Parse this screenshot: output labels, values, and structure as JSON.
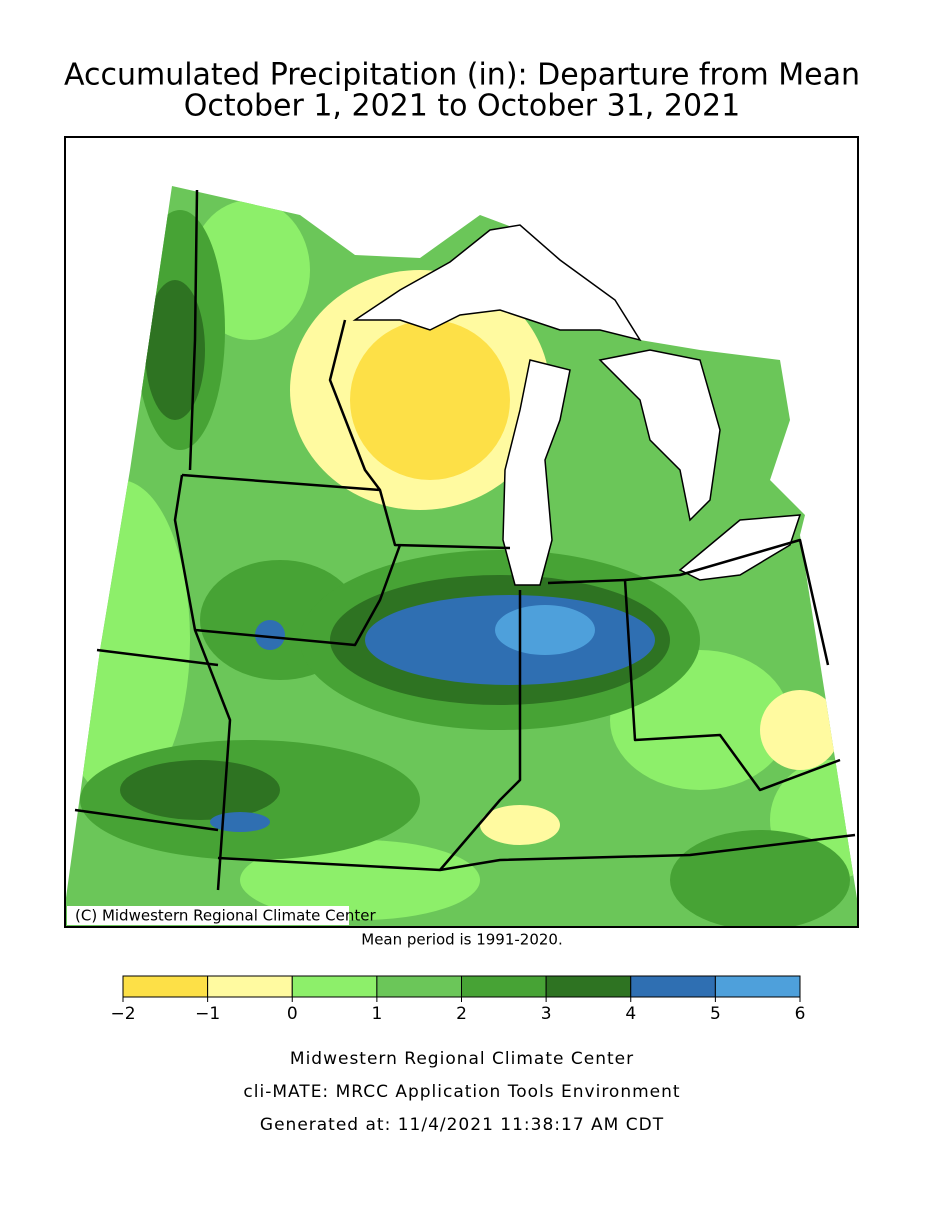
{
  "header": {
    "title": "Accumulated Precipitation (in): Departure from Mean",
    "subtitle": "October 1, 2021 to October 31, 2021"
  },
  "map": {
    "credit": "(C) Midwestern Regional Climate Center",
    "note": "Mean period is 1991-2020."
  },
  "legend": {
    "colors": [
      "#fde047",
      "#fffaa0",
      "#8def6a",
      "#6bc659",
      "#47a335",
      "#2e7322",
      "#2f6fb2",
      "#4ea0db"
    ],
    "ticks": [
      {
        "value": -2,
        "label": "−2"
      },
      {
        "value": -1,
        "label": "−1"
      },
      0,
      1,
      2,
      3,
      4,
      5,
      6
    ]
  },
  "footer": {
    "lines": [
      "Midwestern Regional Climate Center",
      "cli-MATE: MRCC Application Tools Environment",
      "Generated at: 11/4/2021 11:38:17 AM CDT"
    ]
  }
}
